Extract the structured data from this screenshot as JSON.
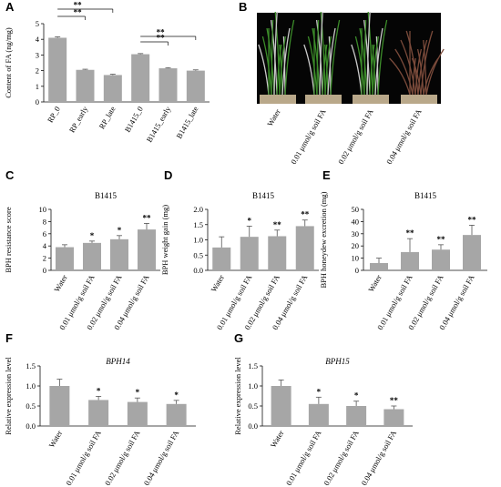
{
  "chart_data": [
    {
      "panel": "A",
      "type": "bar",
      "categories": [
        "RP_0",
        "RP_early",
        "RP_late",
        "B1415_0",
        "B1415_early",
        "B1415_late"
      ],
      "values": [
        4.1,
        2.05,
        1.72,
        3.05,
        2.15,
        2.0
      ],
      "errors": [
        0.06,
        0.04,
        0.05,
        0.04,
        0.04,
        0.05
      ],
      "ylabel": "Content of FA (ng/mg)",
      "ylim": [
        0,
        5
      ],
      "yticks": [
        0,
        1,
        2,
        3,
        4,
        5
      ],
      "comparisons": [
        {
          "from": 0,
          "to": 1,
          "label": "**"
        },
        {
          "from": 0,
          "to": 2,
          "label": "**"
        },
        {
          "from": 3,
          "to": 4,
          "label": "**"
        },
        {
          "from": 3,
          "to": 5,
          "label": "**"
        }
      ]
    },
    {
      "panel": "C",
      "type": "bar",
      "title": "B1415",
      "categories": [
        "Water",
        "0.01 μmol/g soil FA",
        "0.02 μmol/g soil FA",
        "0.04 μmol/g soil FA"
      ],
      "values": [
        3.8,
        4.5,
        5.1,
        6.7
      ],
      "errors": [
        0.4,
        0.3,
        0.6,
        1.0
      ],
      "ylabel": "BPH resistance score",
      "ylim": [
        0,
        10
      ],
      "yticks": [
        0,
        2,
        4,
        6,
        8,
        10
      ],
      "significance": [
        "",
        "*",
        "*",
        "**"
      ]
    },
    {
      "panel": "D",
      "type": "bar",
      "title": "B1415",
      "categories": [
        "Water",
        "0.01 μmol/g soil FA",
        "0.02 μmol/g soil FA",
        "0.04 μmol/g soil FA"
      ],
      "values": [
        0.75,
        1.1,
        1.12,
        1.45
      ],
      "errors": [
        0.35,
        0.35,
        0.2,
        0.2
      ],
      "ylabel": "BPH weight gain (mg)",
      "ylim": [
        0,
        2.0
      ],
      "yticks": [
        "0.0",
        "0.5",
        "1.0",
        "1.5",
        "2.0"
      ],
      "significance": [
        "",
        "*",
        "**",
        "**"
      ]
    },
    {
      "panel": "E",
      "type": "bar",
      "title": "B1415",
      "categories": [
        "Water",
        "0.01 μmol/g soil FA",
        "0.02 μmol/g soil FA",
        "0.04 μmol/g soil FA"
      ],
      "values": [
        6,
        15,
        17,
        29
      ],
      "errors": [
        4,
        11,
        4,
        8
      ],
      "ylabel": "BPH honeydew excretion (mg)",
      "ylim": [
        0,
        50
      ],
      "yticks": [
        0,
        10,
        20,
        30,
        40,
        50
      ],
      "significance": [
        "",
        "**",
        "**",
        "**"
      ]
    },
    {
      "panel": "F",
      "type": "bar",
      "title": "BPH14",
      "categories": [
        "Water",
        "0.01 μmol/g soil FA",
        "0.02 μmol/g soil FA",
        "0.04 μmol/g soil FA"
      ],
      "values": [
        1.0,
        0.65,
        0.6,
        0.55
      ],
      "errors": [
        0.17,
        0.09,
        0.1,
        0.09
      ],
      "ylabel": "Relative expression level",
      "ylim": [
        0,
        1.5
      ],
      "yticks": [
        "0.0",
        "0.5",
        "1.0",
        "1.5"
      ],
      "significance": [
        "",
        "*",
        "*",
        "*"
      ]
    },
    {
      "panel": "G",
      "type": "bar",
      "title": "BPH15",
      "categories": [
        "Water",
        "0.01 μmol/g soil FA",
        "0.02 μmol/g soil FA",
        "0.04 μmol/g soil FA"
      ],
      "values": [
        1.0,
        0.55,
        0.5,
        0.42
      ],
      "errors": [
        0.15,
        0.17,
        0.12,
        0.08
      ],
      "ylabel": "Relative expression level",
      "ylim": [
        0,
        1.5
      ],
      "yticks": [
        "0.0",
        "0.5",
        "1.0",
        "1.5"
      ],
      "significance": [
        "",
        "*",
        "*",
        "**"
      ]
    }
  ],
  "photo_panel": {
    "panel": "B",
    "labels": [
      "Water",
      "0.01 μmol/g soil FA",
      "0.02 μmol/g soil FA",
      "0.04 μmol/g soil FA"
    ]
  },
  "colors": {
    "bar_fill": "#a6a6a6",
    "axis": "#111111",
    "photo_background": "#050505",
    "plant_green": "#3c8c2a",
    "plant_dead": "#7a4a3a"
  }
}
